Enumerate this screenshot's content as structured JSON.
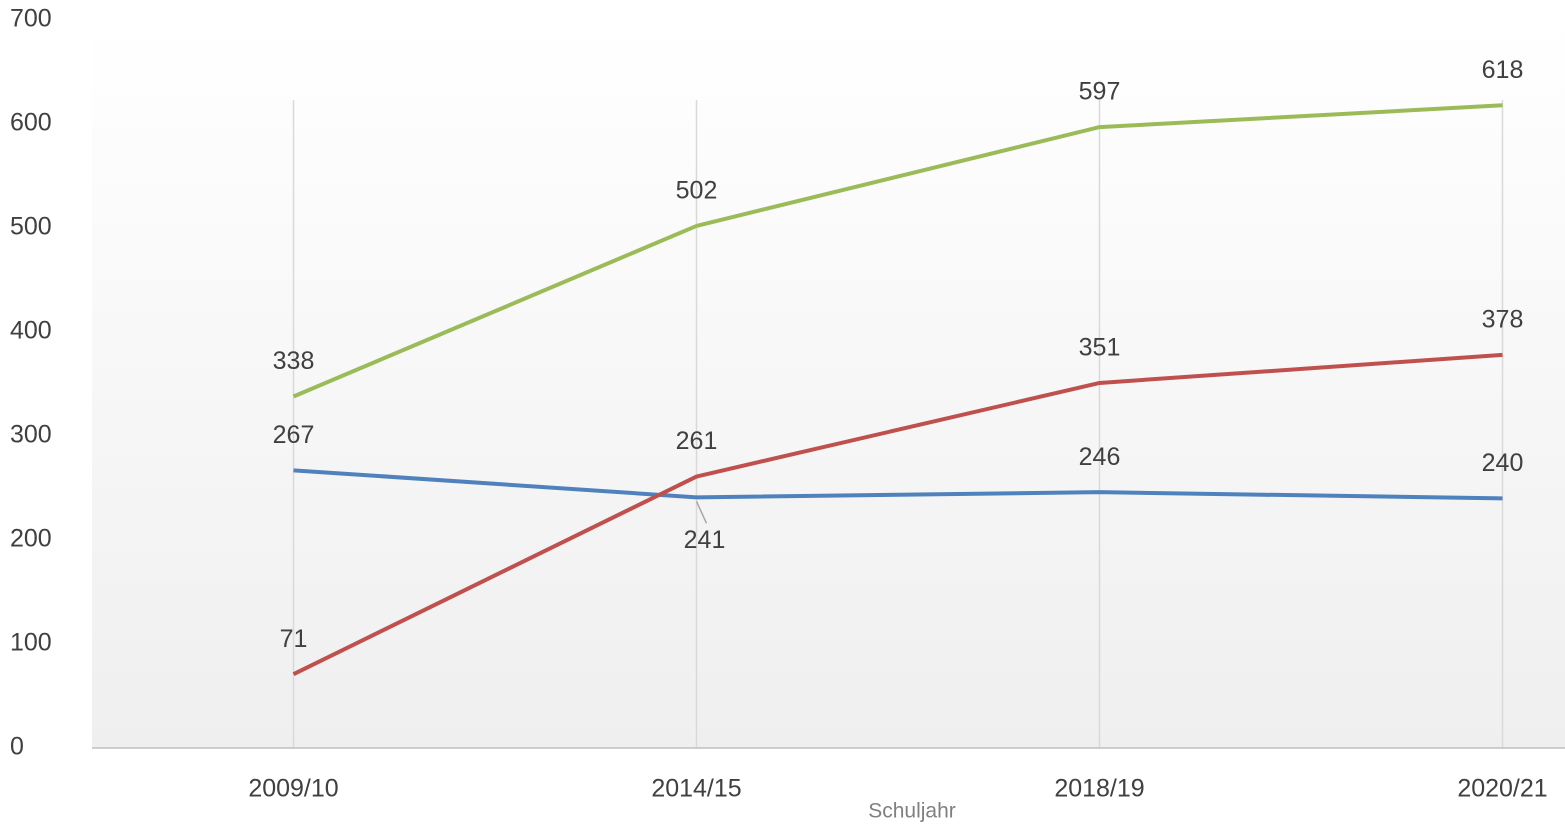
{
  "chart_data": {
    "type": "line",
    "x_label": "Schuljahr",
    "categories": [
      "2009/10",
      "2014/15",
      "2018/19",
      "2020/21"
    ],
    "series": [
      {
        "color": "#4f81bd",
        "values": [
          267,
          241,
          246,
          240
        ]
      },
      {
        "color": "#c0504d",
        "values": [
          71,
          261,
          351,
          378
        ]
      },
      {
        "color": "#9bbb59",
        "values": [
          338,
          502,
          597,
          618
        ]
      }
    ],
    "ylim": [
      0,
      700
    ],
    "yticks": [
      0,
      100,
      200,
      300,
      400,
      500,
      600,
      700
    ],
    "grid": true
  }
}
